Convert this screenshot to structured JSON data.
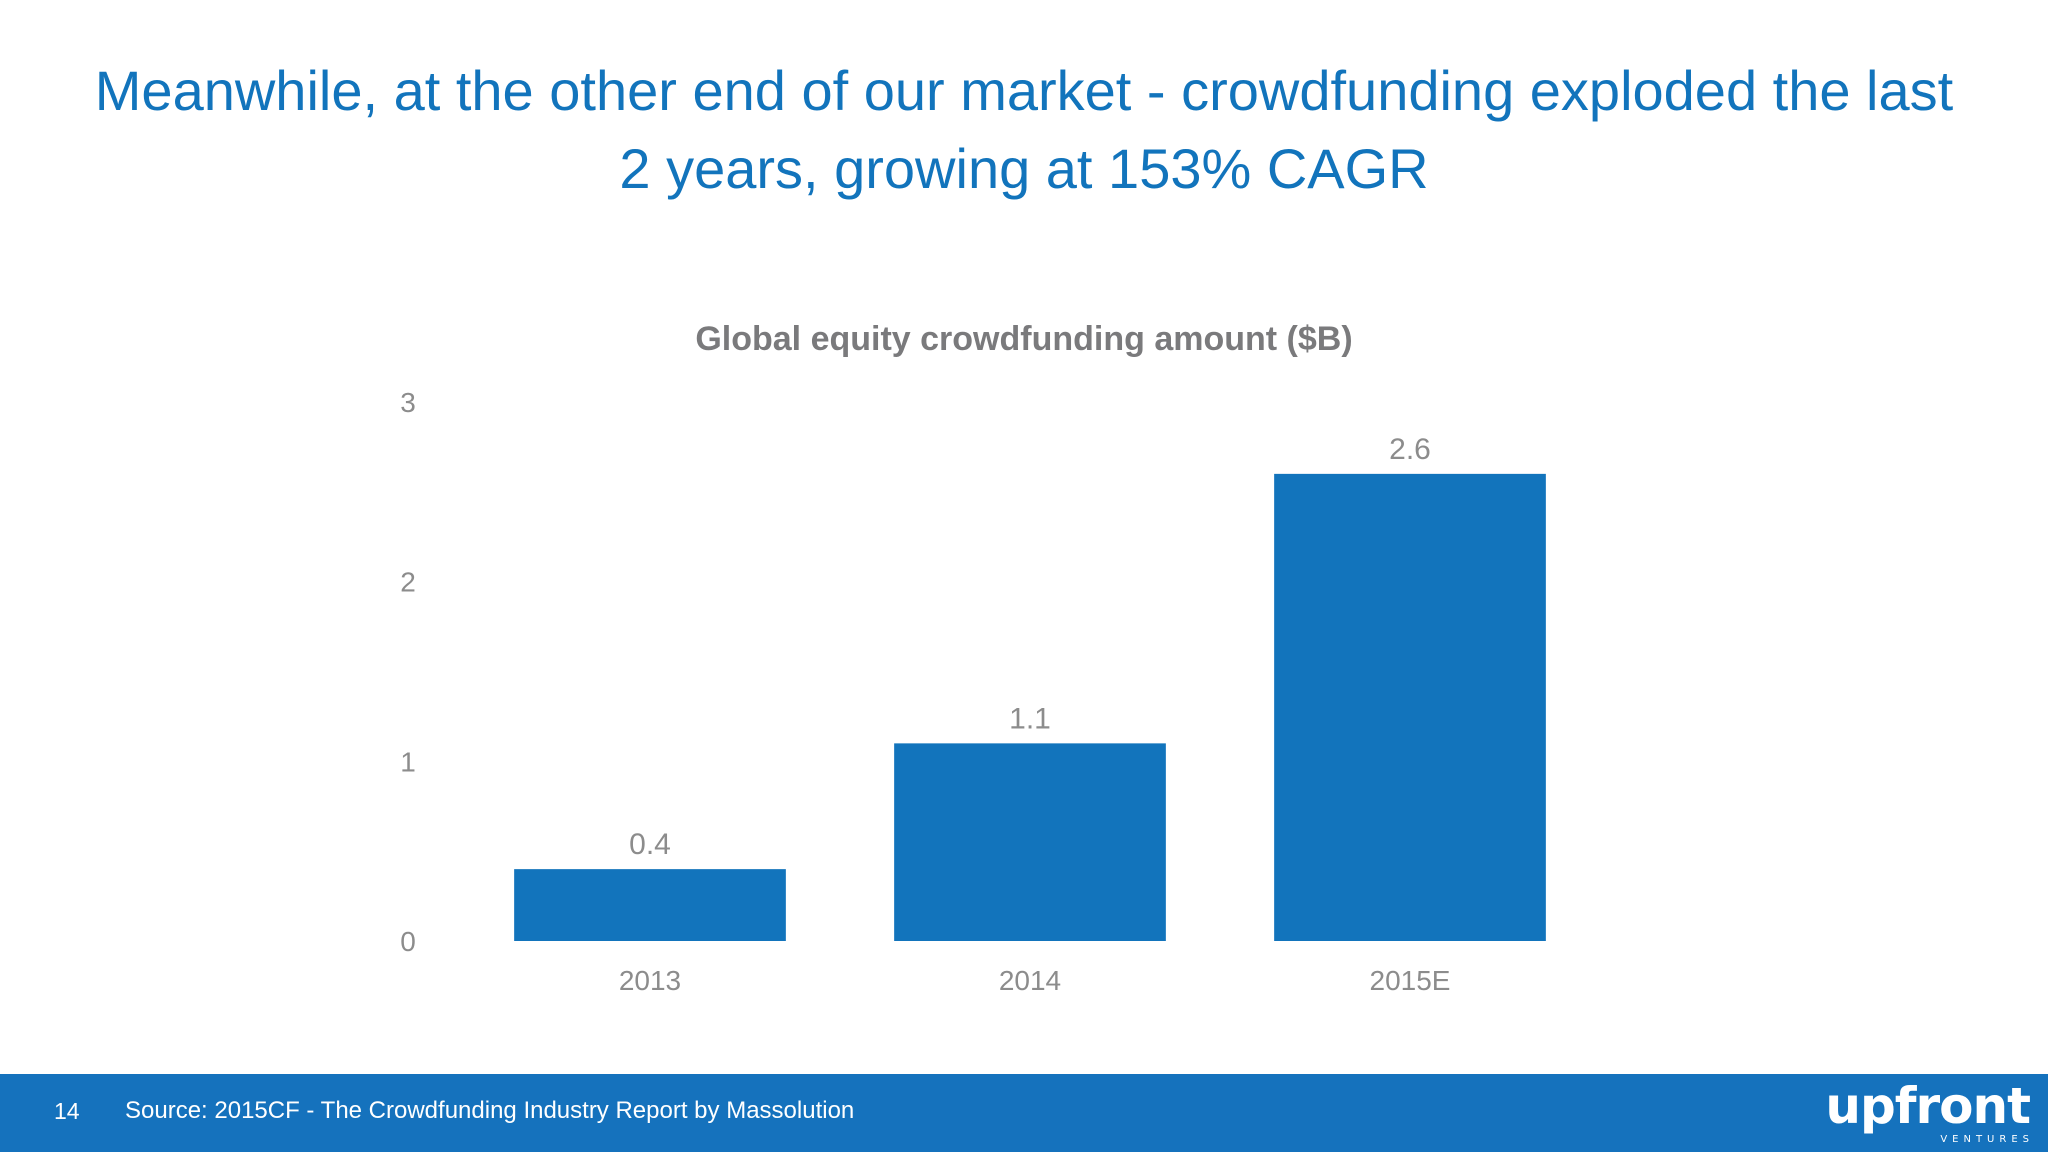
{
  "slide": {
    "title_line1": "Meanwhile, at the other end of our market - crowdfunding exploded the last",
    "title_line2": "2 years, growing at 153% CAGR",
    "title_color": "#1274bc"
  },
  "chart_data": {
    "type": "bar",
    "title": "Global equity crowdfunding amount ($B)",
    "categories": [
      "2013",
      "2014",
      "2015E"
    ],
    "values": [
      0.4,
      1.1,
      2.6
    ],
    "data_labels": [
      "0.4",
      "1.1",
      "2.6"
    ],
    "ylim": [
      0,
      3
    ],
    "yticks": [
      0,
      1,
      2,
      3
    ],
    "xlabel": "",
    "ylabel": "",
    "grid": false,
    "legend": "none",
    "bar_color": "#1274bc"
  },
  "footer": {
    "page_number": "14",
    "source": "Source: 2015CF - The Crowdfunding Industry Report by Massolution",
    "logo_text": "upfront",
    "logo_subtext": "VENTURES",
    "background_color": "#1572bd"
  }
}
